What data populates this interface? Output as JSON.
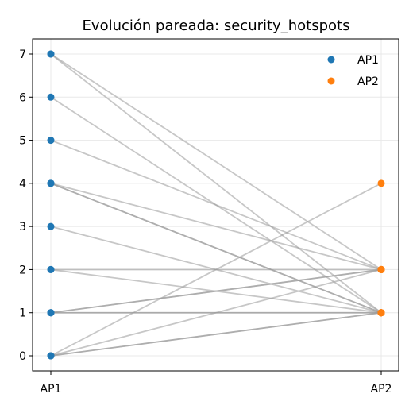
{
  "chart_data": {
    "type": "line",
    "title": "Evolución pareada: security_hotspots",
    "xlabel": "",
    "ylabel": "",
    "categories": [
      "AP1",
      "AP2"
    ],
    "ylim": [
      -0.35,
      7.35
    ],
    "yticks": [
      0,
      1,
      2,
      3,
      4,
      5,
      6,
      7
    ],
    "grid": true,
    "legend_position": "top-right",
    "series": [
      {
        "name": "AP1",
        "color": "#1f77b4"
      },
      {
        "name": "AP2",
        "color": "#ff7f0e"
      }
    ],
    "pairs": [
      [
        7,
        1
      ],
      [
        7,
        2
      ],
      [
        6,
        1
      ],
      [
        5,
        2
      ],
      [
        4,
        1
      ],
      [
        4,
        1
      ],
      [
        4,
        2
      ],
      [
        3,
        1
      ],
      [
        2,
        2
      ],
      [
        2,
        1
      ],
      [
        1,
        1
      ],
      [
        1,
        1
      ],
      [
        1,
        2
      ],
      [
        1,
        2
      ],
      [
        0,
        4
      ],
      [
        0,
        2
      ],
      [
        0,
        1
      ],
      [
        0,
        1
      ]
    ],
    "line_color": "#999999"
  }
}
